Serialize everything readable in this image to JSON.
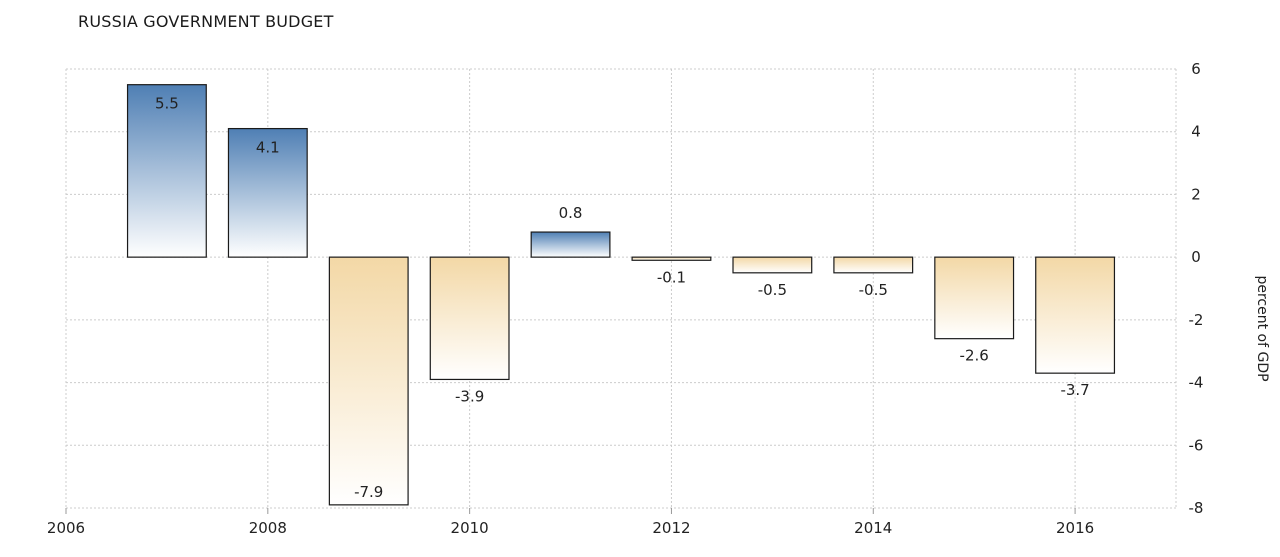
{
  "chart_data": {
    "type": "bar",
    "title": "RUSSIA GOVERNMENT BUDGET",
    "ylabel": "percent of GDP",
    "xlabel": "",
    "x": [
      2007,
      2008,
      2009,
      2010,
      2011,
      2012,
      2013,
      2014,
      2015,
      2016
    ],
    "values": [
      5.5,
      4.1,
      -7.9,
      -3.9,
      0.8,
      -0.1,
      -0.5,
      -0.5,
      -2.6,
      -3.7
    ],
    "value_labels": [
      "5.5",
      "4.1",
      "-7.9",
      "-3.9",
      "0.8",
      "-0.1",
      "-0.5",
      "-0.5",
      "-2.6",
      "-3.7"
    ],
    "xlim": [
      2006,
      2017
    ],
    "ylim": [
      -8,
      6
    ],
    "x_ticks": [
      "2006",
      "2008",
      "2010",
      "2012",
      "2014",
      "2016"
    ],
    "y_ticks": [
      "6",
      "4",
      "2",
      "0",
      "-2",
      "-4",
      "-6",
      "-8"
    ],
    "y_axis_side": "right",
    "grid": true,
    "legend": false,
    "colors": {
      "positive_top": "#4f7fb4",
      "positive_bottom": "#ffffff",
      "negative_top": "#f3d8a6",
      "negative_bottom": "#ffffff",
      "bar_stroke": "#1a1a1a",
      "grid": "#cccccc"
    }
  }
}
